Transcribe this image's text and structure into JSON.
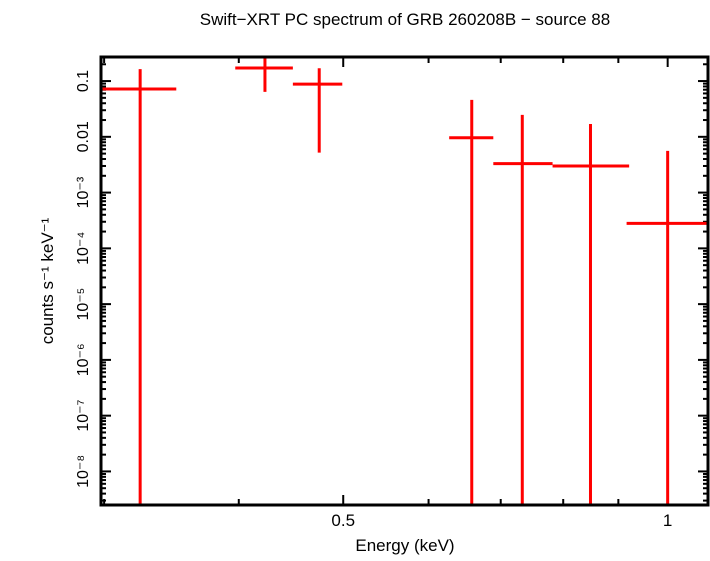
{
  "chart_data": {
    "type": "scatter",
    "title": "Swift−XRT PC spectrum of GRB 260208B − source 88",
    "xlabel": "Energy (keV)",
    "ylabel": "counts s⁻¹ keV⁻¹",
    "xscale": "log",
    "yscale": "log",
    "xlim": [
      0.298,
      1.09
    ],
    "ylim": [
      2.5e-09,
      0.27
    ],
    "grid": false,
    "series_color": "#ff0000",
    "x_tick_labels": [
      {
        "value": 0.5,
        "label": "0.5"
      },
      {
        "value": 1,
        "label": "1"
      }
    ],
    "x_minor_ticks": [
      0.3,
      0.4,
      0.6,
      0.7,
      0.8,
      0.9
    ],
    "y_tick_labels": [
      {
        "value": 0.1,
        "label": "0.1"
      },
      {
        "value": 0.01,
        "label": "0.01"
      },
      {
        "value": 0.001,
        "label": "10⁻³"
      },
      {
        "value": 0.0001,
        "label": "10⁻⁴"
      },
      {
        "value": 1e-05,
        "label": "10⁻⁵"
      },
      {
        "value": 1e-06,
        "label": "10⁻⁶"
      },
      {
        "value": 1e-07,
        "label": "10⁻⁷"
      },
      {
        "value": 1e-08,
        "label": "10⁻⁸"
      }
    ],
    "points": [
      {
        "x": 0.324,
        "xlow": 0.299,
        "xhigh": 0.35,
        "y": 0.072,
        "ylow": null,
        "yhigh": 0.164
      },
      {
        "x": 0.423,
        "xlow": 0.397,
        "xhigh": 0.449,
        "y": 0.171,
        "ylow": 0.064,
        "yhigh": 0.27
      },
      {
        "x": 0.475,
        "xlow": 0.449,
        "xhigh": 0.499,
        "y": 0.088,
        "ylow": 0.0052,
        "yhigh": 0.17
      },
      {
        "x": 0.658,
        "xlow": 0.627,
        "xhigh": 0.689,
        "y": 0.0096,
        "ylow": null,
        "yhigh": 0.046
      },
      {
        "x": 0.733,
        "xlow": 0.689,
        "xhigh": 0.782,
        "y": 0.0033,
        "ylow": null,
        "yhigh": 0.0247
      },
      {
        "x": 0.848,
        "xlow": 0.782,
        "xhigh": 0.921,
        "y": 0.003,
        "ylow": null,
        "yhigh": 0.017
      },
      {
        "x": 1.0,
        "xlow": 0.916,
        "xhigh": 1.09,
        "y": 0.00028,
        "ylow": null,
        "yhigh": 0.0056
      }
    ]
  }
}
